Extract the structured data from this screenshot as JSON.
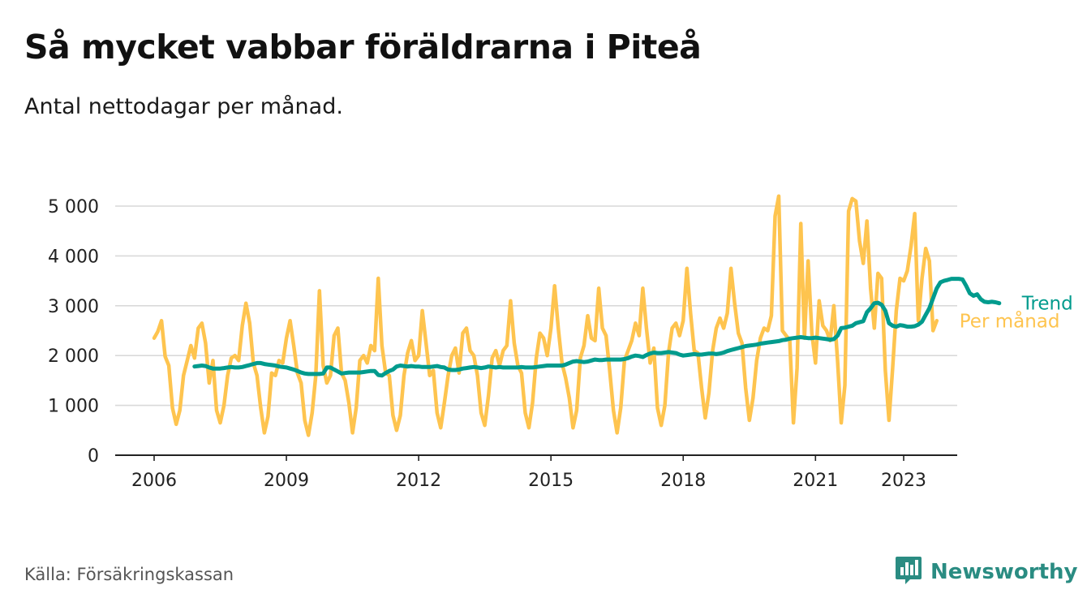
{
  "header": {
    "title": "Så mycket vabbar föräldrarna i Piteå",
    "subtitle": "Antal nettodagar per månad."
  },
  "footer": {
    "source": "Källa: Försäkringskassan",
    "brand": "Newsworthy"
  },
  "colors": {
    "monthly": "#FEC44F",
    "trend": "#009B8D",
    "grid": "#d9d9d9",
    "axis": "#222222",
    "brand": "#2a8c82"
  },
  "icons": {
    "brand_logo": "bar-chart-speech-bubble-icon"
  },
  "chart_data": {
    "type": "line",
    "xlim": [
      2006,
      2023.5
    ],
    "ylim": [
      0,
      5000
    ],
    "x_ticks": [
      {
        "value": 2006,
        "label": "2006"
      },
      {
        "value": 2009,
        "label": "2009"
      },
      {
        "value": 2012,
        "label": "2012"
      },
      {
        "value": 2015,
        "label": "2015"
      },
      {
        "value": 2018,
        "label": "2018"
      },
      {
        "value": 2021,
        "label": "2021"
      },
      {
        "value": 2023,
        "label": "2023"
      }
    ],
    "y_ticks": [
      {
        "value": 0,
        "label": "0"
      },
      {
        "value": 1000,
        "label": "1 000"
      },
      {
        "value": 2000,
        "label": "2 000"
      },
      {
        "value": 3000,
        "label": "3 000"
      },
      {
        "value": 4000,
        "label": "4 000"
      },
      {
        "value": 5000,
        "label": "5 000"
      }
    ],
    "grid": true,
    "legend": "inline-right",
    "series": [
      {
        "name": "Per månad",
        "start": "2006-01",
        "values": [
          2350,
          2480,
          2700,
          1980,
          1800,
          950,
          620,
          900,
          1600,
          1900,
          2200,
          1950,
          2550,
          2650,
          2250,
          1450,
          1900,
          900,
          650,
          1000,
          1600,
          1950,
          2000,
          1900,
          2600,
          3050,
          2650,
          1850,
          1600,
          950,
          450,
          780,
          1650,
          1600,
          1900,
          1850,
          2350,
          2700,
          2200,
          1650,
          1450,
          700,
          400,
          850,
          1600,
          3300,
          1800,
          1450,
          1600,
          2400,
          2550,
          1650,
          1500,
          1050,
          450,
          950,
          1900,
          2000,
          1850,
          2200,
          2100,
          3550,
          2200,
          1650,
          1600,
          800,
          500,
          800,
          1600,
          2050,
          2300,
          1900,
          2000,
          2900,
          2250,
          1600,
          1700,
          850,
          550,
          1050,
          1600,
          2000,
          2150,
          1650,
          2450,
          2550,
          2100,
          2000,
          1600,
          850,
          600,
          1200,
          1950,
          2100,
          1800,
          2100,
          2200,
          3100,
          2250,
          1800,
          1650,
          850,
          550,
          1050,
          1950,
          2450,
          2350,
          2000,
          2550,
          3400,
          2550,
          1850,
          1550,
          1150,
          550,
          900,
          1950,
          2200,
          2800,
          2350,
          2300,
          3350,
          2550,
          2400,
          1700,
          900,
          450,
          950,
          1900,
          2100,
          2300,
          2650,
          2400,
          3350,
          2550,
          1850,
          2150,
          950,
          600,
          1000,
          2050,
          2550,
          2650,
          2400,
          2700,
          3750,
          2850,
          2100,
          2050,
          1350,
          750,
          1250,
          2100,
          2550,
          2750,
          2550,
          2850,
          3750,
          3050,
          2450,
          2250,
          1350,
          700,
          1150,
          1900,
          2350,
          2550,
          2500,
          2800,
          4800,
          5200,
          2500,
          2400,
          2300,
          650,
          1750,
          4650,
          2350,
          3900,
          2450,
          1850,
          3100,
          2600,
          2500,
          2300,
          3000,
          1900,
          650,
          1400,
          4900,
          5150,
          5100,
          4300,
          3850,
          4700,
          3350,
          2550,
          3650,
          3550,
          1700,
          700,
          1750,
          2900,
          3550,
          3500,
          3700,
          4200,
          4850,
          2700,
          3550,
          4150,
          3900,
          2500,
          2700
        ]
      },
      {
        "name": "Trend",
        "start": "2006-12",
        "values": [
          1780,
          1790,
          1800,
          1790,
          1760,
          1740,
          1740,
          1740,
          1750,
          1760,
          1770,
          1760,
          1760,
          1770,
          1790,
          1810,
          1830,
          1850,
          1850,
          1830,
          1820,
          1810,
          1800,
          1780,
          1770,
          1760,
          1740,
          1720,
          1690,
          1660,
          1640,
          1630,
          1630,
          1630,
          1630,
          1640,
          1760,
          1760,
          1720,
          1680,
          1640,
          1650,
          1660,
          1660,
          1660,
          1660,
          1670,
          1680,
          1690,
          1690,
          1610,
          1600,
          1650,
          1690,
          1720,
          1780,
          1800,
          1790,
          1780,
          1790,
          1780,
          1780,
          1770,
          1770,
          1770,
          1780,
          1790,
          1770,
          1760,
          1720,
          1710,
          1710,
          1720,
          1740,
          1750,
          1760,
          1770,
          1760,
          1750,
          1760,
          1780,
          1770,
          1760,
          1770,
          1760,
          1760,
          1760,
          1760,
          1760,
          1770,
          1760,
          1760,
          1760,
          1770,
          1780,
          1790,
          1800,
          1800,
          1800,
          1800,
          1800,
          1820,
          1850,
          1880,
          1890,
          1880,
          1870,
          1880,
          1900,
          1920,
          1910,
          1910,
          1920,
          1920,
          1920,
          1920,
          1920,
          1930,
          1950,
          1980,
          2000,
          1990,
          1970,
          2010,
          2040,
          2060,
          2050,
          2050,
          2060,
          2070,
          2060,
          2050,
          2020,
          2000,
          2010,
          2020,
          2030,
          2020,
          2020,
          2030,
          2040,
          2040,
          2030,
          2040,
          2060,
          2090,
          2110,
          2130,
          2150,
          2170,
          2190,
          2200,
          2210,
          2220,
          2240,
          2250,
          2260,
          2270,
          2280,
          2290,
          2310,
          2320,
          2340,
          2350,
          2360,
          2370,
          2360,
          2350,
          2350,
          2360,
          2350,
          2340,
          2330,
          2320,
          2330,
          2400,
          2550,
          2560,
          2580,
          2600,
          2650,
          2670,
          2690,
          2870,
          2950,
          3050,
          3060,
          3020,
          2900,
          2650,
          2600,
          2580,
          2610,
          2600,
          2580,
          2580,
          2590,
          2620,
          2680,
          2820,
          2950,
          3150,
          3350,
          3470,
          3500,
          3520,
          3540,
          3540,
          3540,
          3530,
          3400,
          3250,
          3200,
          3230,
          3130,
          3080,
          3070,
          3080,
          3070,
          3050
        ]
      }
    ]
  }
}
